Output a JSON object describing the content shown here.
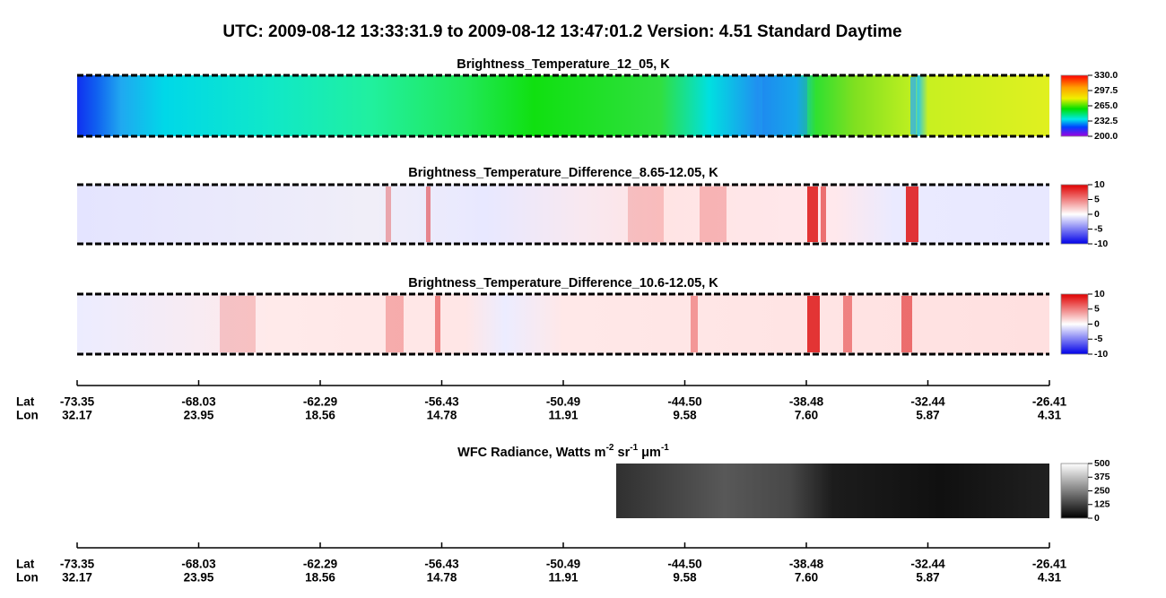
{
  "title": "UTC:  2009-08-12   13:33:31.9  to  2009-08-12   13:47:01.2    Version: 4.51  Standard Daytime",
  "panels": [
    {
      "title": "Brightness_Temperature_12_05, K",
      "colorbar": [
        "330.0",
        "297.5",
        "265.0",
        "232.5",
        "200.0"
      ]
    },
    {
      "title": "Brightness_Temperature_Difference_8.65-12.05, K",
      "colorbar": [
        "10",
        "5",
        "0",
        "-5",
        "-10"
      ]
    },
    {
      "title": "Brightness_Temperature_Difference_10.6-12.05, K",
      "colorbar": [
        "10",
        "5",
        "0",
        "-5",
        "-10"
      ]
    }
  ],
  "wfc": {
    "title_parts": [
      "WFC Radiance, Watts m",
      "-2",
      " sr",
      "-1",
      " μm",
      "-1"
    ],
    "colorbar": [
      "500",
      "375",
      "250",
      "125",
      "0"
    ]
  },
  "axis": {
    "lat_label": "Lat",
    "lon_label": "Lon",
    "lat": [
      "-73.35",
      "-68.03",
      "-62.29",
      "-56.43",
      "-50.49",
      "-44.50",
      "-38.48",
      "-32.44",
      "-26.41"
    ],
    "lon": [
      "32.17",
      "23.95",
      "18.56",
      "14.78",
      "11.91",
      "9.58",
      "7.60",
      "5.87",
      "4.31"
    ]
  }
}
